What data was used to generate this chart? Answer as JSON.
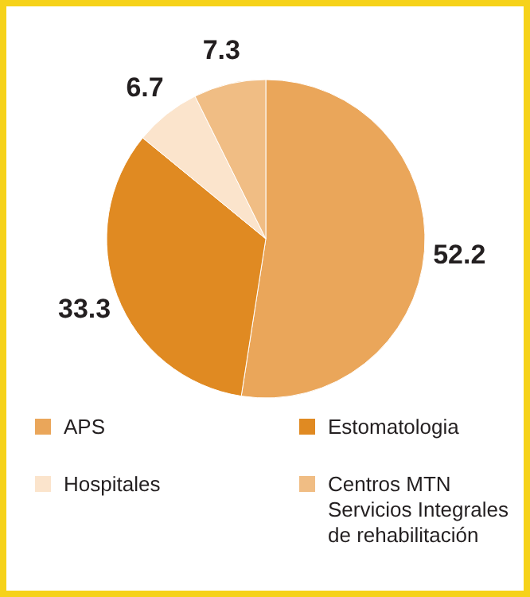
{
  "chart_data": {
    "type": "pie",
    "categories": [
      "APS",
      "Estomatologia",
      "Hospitales",
      "Centros MTN Servicios Integrales de rehabilitación"
    ],
    "values": [
      52.2,
      33.3,
      6.7,
      7.3
    ],
    "colors": [
      "#eaa65a",
      "#e08a22",
      "#fbe4cc",
      "#f0bd84"
    ],
    "data_labels": true,
    "legend": "bottom"
  }
}
